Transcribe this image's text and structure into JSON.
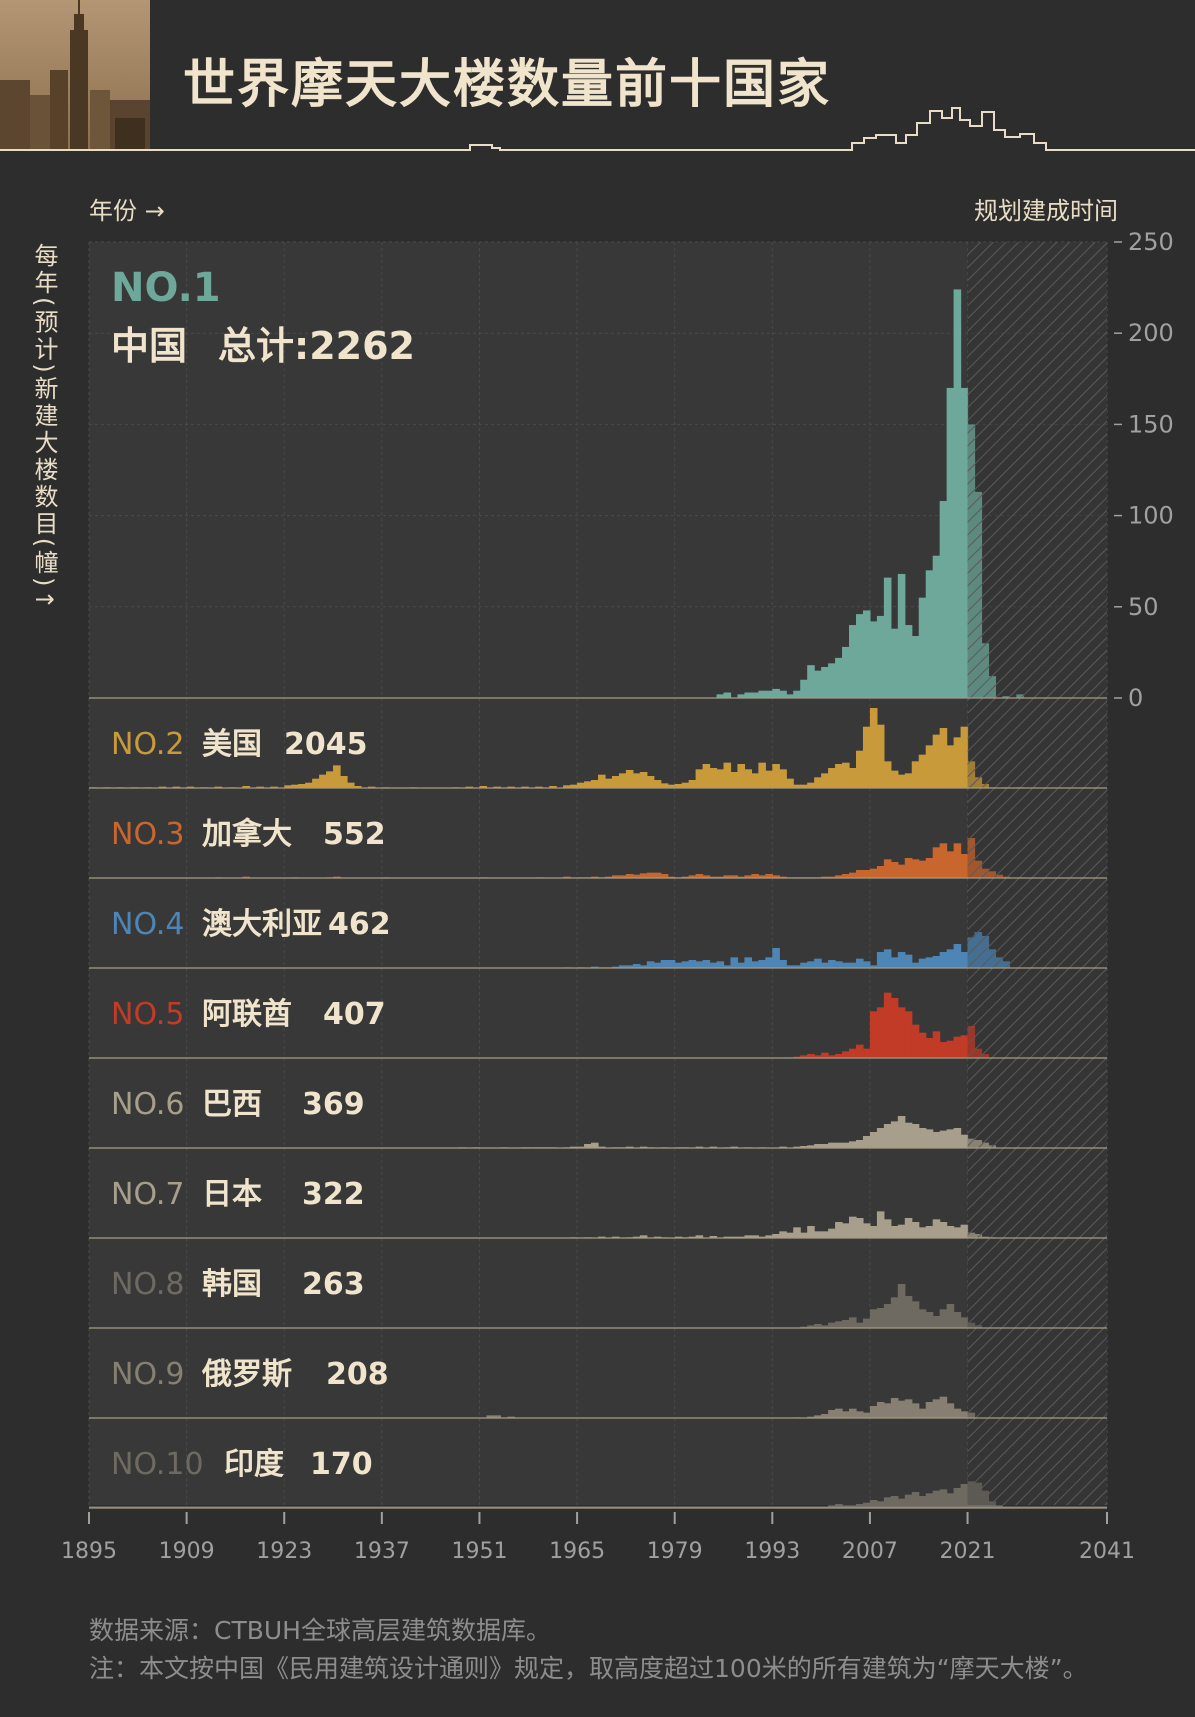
{
  "title": "世界摩天大楼数量前十国家",
  "labels": {
    "year_arrow": "年份 →",
    "planned": "规划建成时间",
    "y_axis": "每年(预计)新建大楼数目(幢)↑"
  },
  "footer": {
    "source": "数据来源：CTBUH全球高层建筑数据库。",
    "note": "注：本文按中国《民用建筑设计通则》规定，取高度超过100米的所有建筑为“摩天大楼”。"
  },
  "chart_data": {
    "type": "bar",
    "x_ticks": [
      1895,
      1909,
      1923,
      1937,
      1951,
      1965,
      1979,
      1993,
      2007,
      2021,
      2041
    ],
    "xlim": [
      1895,
      2041
    ],
    "planned_from": 2021,
    "ylabel": "每年(预计)新建大楼数目(幢)",
    "china_yticks": [
      0,
      50,
      100,
      150,
      200,
      250
    ],
    "ylim": [
      0,
      250
    ],
    "series": [
      {
        "rank": "NO.1",
        "name": "中国",
        "total_label": "总计:2262",
        "color": "#6ea89b",
        "years": [
          1985,
          1986,
          1988,
          1989,
          1990,
          1991,
          1992,
          1993,
          1994,
          1995,
          1996,
          1997,
          1998,
          1999,
          2000,
          2001,
          2002,
          2003,
          2004,
          2005,
          2006,
          2007,
          2008,
          2009,
          2010,
          2011,
          2012,
          2013,
          2014,
          2015,
          2016,
          2017,
          2018,
          2019,
          2020,
          2021,
          2022,
          2023,
          2024,
          2026,
          2028
        ],
        "values": [
          2,
          3,
          2,
          3,
          3,
          4,
          4,
          5,
          4,
          2,
          4,
          10,
          18,
          15,
          17,
          19,
          22,
          28,
          40,
          46,
          48,
          42,
          45,
          66,
          38,
          68,
          40,
          34,
          55,
          70,
          78,
          108,
          170,
          224,
          170,
          150,
          113,
          30,
          12,
          1,
          2
        ]
      },
      {
        "rank": "NO.2",
        "name": "美国",
        "total_label": "2045",
        "color": "#c99a3a",
        "years": [
          1895,
          1897,
          1899,
          1901,
          1903,
          1905,
          1907,
          1909,
          1911,
          1913,
          1915,
          1917,
          1919,
          1921,
          1923,
          1924,
          1925,
          1926,
          1927,
          1928,
          1929,
          1930,
          1931,
          1932,
          1933,
          1935,
          1937,
          1941,
          1947,
          1949,
          1951,
          1953,
          1955,
          1957,
          1959,
          1961,
          1963,
          1964,
          1965,
          1966,
          1967,
          1968,
          1969,
          1970,
          1971,
          1972,
          1973,
          1974,
          1975,
          1976,
          1977,
          1978,
          1979,
          1980,
          1981,
          1982,
          1983,
          1984,
          1985,
          1986,
          1987,
          1988,
          1989,
          1990,
          1991,
          1992,
          1993,
          1994,
          1995,
          1996,
          1997,
          1998,
          1999,
          2000,
          2001,
          2002,
          2003,
          2004,
          2005,
          2006,
          2007,
          2008,
          2009,
          2010,
          2011,
          2012,
          2013,
          2014,
          2015,
          2016,
          2017,
          2018,
          2019,
          2020,
          2021,
          2022,
          2023,
          2024,
          2026,
          2028
        ],
        "values": [
          1,
          1,
          1,
          1,
          1,
          2,
          2,
          2,
          1,
          2,
          1,
          3,
          2,
          2,
          4,
          5,
          6,
          8,
          14,
          20,
          25,
          34,
          18,
          8,
          3,
          2,
          1,
          1,
          1,
          2,
          3,
          2,
          2,
          2,
          2,
          3,
          4,
          5,
          8,
          10,
          12,
          20,
          14,
          18,
          22,
          27,
          22,
          24,
          18,
          12,
          7,
          5,
          6,
          8,
          12,
          28,
          36,
          30,
          28,
          38,
          24,
          36,
          28,
          22,
          38,
          26,
          36,
          28,
          14,
          5,
          5,
          8,
          16,
          22,
          30,
          36,
          38,
          30,
          56,
          92,
          120,
          95,
          40,
          26,
          20,
          22,
          40,
          50,
          64,
          80,
          90,
          64,
          76,
          92,
          40,
          16,
          6,
          1,
          1,
          1
        ]
      },
      {
        "rank": "NO.3",
        "name": "加拿大",
        "total_label": "552",
        "color": "#c8662e",
        "years": [
          1913,
          1917,
          1924,
          1929,
          1930,
          1937,
          1951,
          1959,
          1963,
          1965,
          1966,
          1967,
          1968,
          1969,
          1970,
          1971,
          1972,
          1973,
          1974,
          1975,
          1976,
          1977,
          1978,
          1979,
          1980,
          1981,
          1982,
          1983,
          1984,
          1985,
          1986,
          1987,
          1988,
          1989,
          1990,
          1991,
          1992,
          1993,
          1994,
          1995,
          1996,
          1997,
          1998,
          1999,
          2000,
          2001,
          2002,
          2003,
          2004,
          2005,
          2006,
          2007,
          2008,
          2009,
          2010,
          2011,
          2012,
          2013,
          2014,
          2015,
          2016,
          2017,
          2018,
          2019,
          2020,
          2021,
          2022,
          2023,
          2024,
          2025,
          2026
        ],
        "values": [
          1,
          2,
          1,
          1,
          2,
          1,
          1,
          1,
          2,
          1,
          1,
          2,
          1,
          2,
          4,
          4,
          6,
          5,
          7,
          8,
          8,
          6,
          2,
          1,
          2,
          4,
          6,
          4,
          2,
          2,
          4,
          4,
          2,
          4,
          6,
          4,
          6,
          4,
          2,
          1,
          1,
          1,
          1,
          1,
          2,
          2,
          4,
          6,
          8,
          12,
          12,
          14,
          18,
          28,
          24,
          20,
          30,
          28,
          26,
          30,
          46,
          52,
          40,
          52,
          36,
          60,
          26,
          14,
          10,
          5,
          2
        ]
      },
      {
        "rank": "NO.4",
        "name": "澳大利亚",
        "total_label": "462",
        "color": "#4d86b6",
        "years": [
          1963,
          1965,
          1967,
          1968,
          1969,
          1970,
          1971,
          1972,
          1973,
          1974,
          1975,
          1976,
          1977,
          1978,
          1979,
          1980,
          1981,
          1982,
          1983,
          1984,
          1985,
          1986,
          1987,
          1988,
          1989,
          1990,
          1991,
          1992,
          1993,
          1994,
          1995,
          1996,
          1997,
          1998,
          1999,
          2000,
          2001,
          2002,
          2003,
          2004,
          2005,
          2006,
          2007,
          2008,
          2009,
          2010,
          2011,
          2012,
          2013,
          2014,
          2015,
          2016,
          2017,
          2018,
          2019,
          2020,
          2021,
          2022,
          2023,
          2024,
          2025,
          2026
        ],
        "values": [
          1,
          1,
          2,
          1,
          1,
          2,
          4,
          4,
          6,
          4,
          10,
          8,
          12,
          12,
          8,
          10,
          12,
          10,
          12,
          8,
          10,
          4,
          16,
          8,
          16,
          10,
          12,
          16,
          30,
          12,
          4,
          4,
          8,
          10,
          14,
          8,
          12,
          10,
          8,
          8,
          14,
          10,
          4,
          24,
          28,
          16,
          24,
          20,
          8,
          14,
          16,
          18,
          24,
          28,
          36,
          24,
          46,
          54,
          48,
          28,
          16,
          10
        ]
      },
      {
        "rank": "NO.5",
        "name": "阿联酋",
        "total_label": "407",
        "color": "#c13b27",
        "years": [
          1995,
          1996,
          1997,
          1998,
          1999,
          2000,
          2001,
          2002,
          2003,
          2004,
          2005,
          2006,
          2007,
          2008,
          2009,
          2010,
          2011,
          2012,
          2013,
          2014,
          2015,
          2016,
          2017,
          2018,
          2019,
          2020,
          2021,
          2022,
          2023
        ],
        "values": [
          1,
          2,
          4,
          6,
          4,
          8,
          4,
          6,
          10,
          14,
          20,
          14,
          70,
          76,
          98,
          90,
          76,
          70,
          50,
          38,
          30,
          40,
          24,
          26,
          32,
          34,
          48,
          14,
          6
        ]
      },
      {
        "rank": "NO.6",
        "name": "巴西",
        "total_label": "369",
        "color": "#a79e8c",
        "years": [
          1948,
          1950,
          1954,
          1957,
          1958,
          1959,
          1960,
          1961,
          1963,
          1964,
          1965,
          1966,
          1967,
          1968,
          1970,
          1971,
          1972,
          1974,
          1975,
          1977,
          1979,
          1980,
          1982,
          1984,
          1986,
          1987,
          1989,
          1991,
          1994,
          1996,
          1997,
          1998,
          1999,
          2000,
          2001,
          2002,
          2003,
          2004,
          2005,
          2006,
          2007,
          2008,
          2009,
          2010,
          2011,
          2012,
          2013,
          2014,
          2015,
          2016,
          2017,
          2018,
          2019,
          2020,
          2021,
          2022,
          2023,
          2024
        ],
        "values": [
          1,
          1,
          1,
          1,
          1,
          1,
          1,
          1,
          1,
          2,
          2,
          6,
          8,
          2,
          1,
          1,
          2,
          2,
          1,
          1,
          1,
          1,
          2,
          2,
          1,
          2,
          1,
          1,
          2,
          2,
          3,
          4,
          6,
          6,
          8,
          8,
          8,
          10,
          12,
          18,
          24,
          30,
          36,
          40,
          48,
          38,
          36,
          30,
          28,
          24,
          26,
          28,
          30,
          20,
          14,
          12,
          8,
          4
        ]
      },
      {
        "rank": "NO.7",
        "name": "日本",
        "total_label": "322",
        "color": "#a79e8c",
        "years": [
          1964,
          1966,
          1968,
          1970,
          1972,
          1973,
          1974,
          1976,
          1977,
          1979,
          1980,
          1981,
          1982,
          1984,
          1986,
          1987,
          1988,
          1989,
          1990,
          1991,
          1992,
          1993,
          1994,
          1995,
          1996,
          1997,
          1998,
          1999,
          2000,
          2001,
          2002,
          2003,
          2004,
          2005,
          2006,
          2007,
          2008,
          2009,
          2010,
          2011,
          2012,
          2013,
          2014,
          2015,
          2016,
          2017,
          2018,
          2019,
          2020,
          2021,
          2022,
          2023,
          2024
        ],
        "values": [
          1,
          1,
          2,
          2,
          1,
          2,
          4,
          2,
          1,
          2,
          1,
          2,
          4,
          3,
          2,
          2,
          2,
          4,
          4,
          2,
          4,
          6,
          10,
          8,
          16,
          8,
          18,
          10,
          10,
          14,
          24,
          22,
          32,
          30,
          22,
          18,
          40,
          28,
          18,
          20,
          30,
          24,
          16,
          18,
          28,
          24,
          18,
          16,
          20,
          8,
          6,
          2,
          1
        ]
      },
      {
        "rank": "NO.8",
        "name": "韩国",
        "total_label": "263",
        "color": "#6e6a61",
        "years": [
          1997,
          1998,
          1999,
          2000,
          2001,
          2002,
          2003,
          2004,
          2005,
          2006,
          2007,
          2008,
          2009,
          2010,
          2011,
          2012,
          2013,
          2014,
          2015,
          2016,
          2017,
          2018,
          2019,
          2020,
          2021,
          2022
        ],
        "values": [
          2,
          4,
          6,
          4,
          8,
          10,
          12,
          16,
          8,
          14,
          28,
          30,
          36,
          46,
          66,
          48,
          40,
          28,
          24,
          18,
          28,
          36,
          24,
          16,
          8,
          4
        ]
      },
      {
        "rank": "NO.9",
        "name": "俄罗斯",
        "total_label": "208",
        "color": "#877f72",
        "years": [
          1952,
          1953,
          1955,
          1996,
          1998,
          1999,
          2000,
          2001,
          2002,
          2003,
          2004,
          2005,
          2006,
          2007,
          2008,
          2009,
          2010,
          2011,
          2012,
          2013,
          2014,
          2015,
          2016,
          2017,
          2018,
          2019,
          2020,
          2021
        ],
        "values": [
          4,
          4,
          2,
          1,
          2,
          4,
          6,
          12,
          14,
          10,
          14,
          10,
          8,
          18,
          24,
          22,
          30,
          26,
          28,
          22,
          14,
          24,
          28,
          32,
          22,
          14,
          10,
          8
        ]
      },
      {
        "rank": "NO.10",
        "name": "印度",
        "total_label": "170",
        "color": "#6e6a61",
        "years": [
          1964,
          1970,
          1977,
          1990,
          1993,
          1996,
          1998,
          2000,
          2001,
          2002,
          2003,
          2004,
          2005,
          2006,
          2007,
          2008,
          2009,
          2010,
          2011,
          2012,
          2013,
          2014,
          2015,
          2016,
          2017,
          2018,
          2019,
          2020,
          2021,
          2022,
          2023,
          2024,
          2025
        ],
        "values": [
          1,
          1,
          1,
          1,
          1,
          1,
          2,
          2,
          4,
          6,
          4,
          4,
          6,
          8,
          12,
          10,
          16,
          18,
          14,
          20,
          24,
          18,
          22,
          26,
          28,
          22,
          30,
          36,
          40,
          38,
          26,
          10,
          4
        ]
      }
    ]
  }
}
